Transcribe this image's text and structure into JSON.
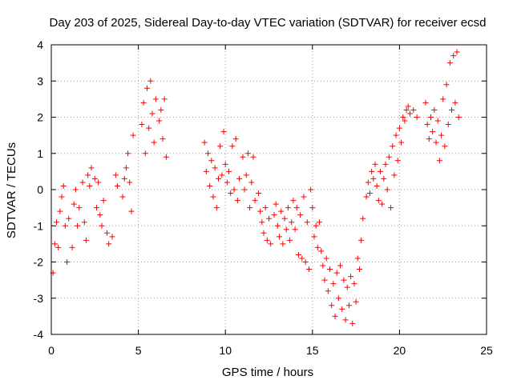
{
  "chart_data": {
    "type": "scatter",
    "title": "Day 203 of 2025, Sidereal Day-to-day VTEC variation (SDTVAR) for receiver ecsd",
    "xlabel": "GPS time / hours",
    "ylabel": "SDTVAR / TECUs",
    "xlim": [
      0,
      25
    ],
    "ylim": [
      -4,
      4
    ],
    "x_ticks": [
      0,
      5,
      10,
      15,
      20,
      25
    ],
    "y_ticks": [
      -4,
      -3,
      -2,
      -1,
      0,
      1,
      2,
      3,
      4
    ],
    "x_tick_labels": [
      "0",
      "5",
      "10",
      "15",
      "20",
      "25"
    ],
    "y_tick_labels": [
      "-4",
      "-3",
      "-2",
      "-1",
      "0",
      "1",
      "2",
      "3",
      "4"
    ],
    "grid": true,
    "marker": "plus",
    "color": "#ff0000",
    "series": [
      {
        "name": "ecsd",
        "points": [
          [
            0.1,
            -2.3
          ],
          [
            0.2,
            -1.5
          ],
          [
            0.3,
            -0.9
          ],
          [
            0.4,
            -1.6
          ],
          [
            0.5,
            -0.6
          ],
          [
            0.6,
            -0.2
          ],
          [
            0.7,
            0.1
          ],
          [
            0.8,
            -1.0
          ],
          [
            0.9,
            -2.0
          ],
          [
            1.0,
            -0.8
          ],
          [
            1.2,
            -1.6
          ],
          [
            1.3,
            -0.4
          ],
          [
            1.4,
            0.0
          ],
          [
            1.5,
            -1.0
          ],
          [
            1.6,
            -0.5
          ],
          [
            1.8,
            0.2
          ],
          [
            1.9,
            -0.9
          ],
          [
            2.0,
            -1.4
          ],
          [
            2.1,
            0.4
          ],
          [
            2.2,
            0.1
          ],
          [
            2.3,
            0.6
          ],
          [
            2.5,
            0.3
          ],
          [
            2.6,
            -0.5
          ],
          [
            2.7,
            0.2
          ],
          [
            2.8,
            -0.7
          ],
          [
            2.9,
            -1.0
          ],
          [
            3.0,
            -0.3
          ],
          [
            3.2,
            -1.2
          ],
          [
            3.3,
            -1.5
          ],
          [
            3.5,
            -1.3
          ],
          [
            3.7,
            0.4
          ],
          [
            3.8,
            0.1
          ],
          [
            4.1,
            -0.2
          ],
          [
            4.2,
            0.3
          ],
          [
            4.3,
            0.6
          ],
          [
            4.4,
            1.0
          ],
          [
            4.5,
            0.2
          ],
          [
            4.6,
            -0.6
          ],
          [
            4.7,
            1.5
          ],
          [
            5.2,
            1.8
          ],
          [
            5.3,
            2.4
          ],
          [
            5.4,
            1.0
          ],
          [
            5.5,
            2.8
          ],
          [
            5.6,
            1.7
          ],
          [
            5.7,
            3.0
          ],
          [
            5.8,
            2.1
          ],
          [
            5.9,
            1.3
          ],
          [
            6.0,
            2.5
          ],
          [
            6.2,
            1.9
          ],
          [
            6.3,
            2.2
          ],
          [
            6.4,
            1.4
          ],
          [
            6.5,
            2.5
          ],
          [
            6.6,
            0.9
          ],
          [
            8.8,
            1.3
          ],
          [
            8.9,
            0.5
          ],
          [
            9.0,
            1.0
          ],
          [
            9.1,
            0.1
          ],
          [
            9.2,
            0.8
          ],
          [
            9.3,
            -0.2
          ],
          [
            9.4,
            0.6
          ],
          [
            9.5,
            -0.5
          ],
          [
            9.6,
            0.3
          ],
          [
            9.7,
            1.2
          ],
          [
            9.8,
            0.4
          ],
          [
            9.9,
            1.6
          ],
          [
            10.0,
            0.7
          ],
          [
            10.1,
            0.2
          ],
          [
            10.2,
            0.5
          ],
          [
            10.3,
            -0.1
          ],
          [
            10.4,
            1.2
          ],
          [
            10.5,
            0.0
          ],
          [
            10.6,
            1.4
          ],
          [
            10.7,
            -0.3
          ],
          [
            10.8,
            0.3
          ],
          [
            11.0,
            0.9
          ],
          [
            11.1,
            0.0
          ],
          [
            11.2,
            0.4
          ],
          [
            11.3,
            1.0
          ],
          [
            11.4,
            -0.5
          ],
          [
            11.5,
            0.2
          ],
          [
            11.6,
            0.9
          ],
          [
            11.7,
            -0.3
          ],
          [
            11.9,
            -0.1
          ],
          [
            12.0,
            -0.6
          ],
          [
            12.1,
            -0.9
          ],
          [
            12.2,
            -1.2
          ],
          [
            12.3,
            -0.5
          ],
          [
            12.4,
            -1.4
          ],
          [
            12.5,
            -0.8
          ],
          [
            12.6,
            -1.5
          ],
          [
            12.8,
            -0.7
          ],
          [
            12.9,
            -0.4
          ],
          [
            13.0,
            -1.0
          ],
          [
            13.1,
            -1.3
          ],
          [
            13.2,
            -0.6
          ],
          [
            13.3,
            -1.5
          ],
          [
            13.4,
            -0.8
          ],
          [
            13.5,
            -1.1
          ],
          [
            13.6,
            -0.5
          ],
          [
            13.7,
            -1.4
          ],
          [
            13.8,
            -0.9
          ],
          [
            13.9,
            -0.3
          ],
          [
            14.0,
            -1.1
          ],
          [
            14.1,
            -0.5
          ],
          [
            14.2,
            -1.8
          ],
          [
            14.3,
            -0.7
          ],
          [
            14.4,
            -1.9
          ],
          [
            14.5,
            -0.2
          ],
          [
            14.6,
            -2.0
          ],
          [
            14.7,
            -0.9
          ],
          [
            14.8,
            -2.2
          ],
          [
            14.9,
            0.0
          ],
          [
            15.0,
            -0.5
          ],
          [
            15.1,
            -1.3
          ],
          [
            15.2,
            -1.0
          ],
          [
            15.3,
            -1.6
          ],
          [
            15.4,
            -0.9
          ],
          [
            15.5,
            -1.7
          ],
          [
            15.6,
            -2.1
          ],
          [
            15.7,
            -2.5
          ],
          [
            15.8,
            -1.9
          ],
          [
            15.9,
            -2.8
          ],
          [
            16.0,
            -2.2
          ],
          [
            16.1,
            -3.2
          ],
          [
            16.2,
            -2.6
          ],
          [
            16.3,
            -3.5
          ],
          [
            16.4,
            -2.3
          ],
          [
            16.5,
            -3.0
          ],
          [
            16.6,
            -2.1
          ],
          [
            16.7,
            -3.3
          ],
          [
            16.8,
            -2.5
          ],
          [
            16.9,
            -3.6
          ],
          [
            17.0,
            -2.7
          ],
          [
            17.1,
            -3.2
          ],
          [
            17.2,
            -2.4
          ],
          [
            17.3,
            -3.7
          ],
          [
            17.4,
            -2.6
          ],
          [
            17.5,
            -3.1
          ],
          [
            17.6,
            -1.9
          ],
          [
            17.7,
            -2.2
          ],
          [
            17.8,
            -1.4
          ],
          [
            17.9,
            -0.8
          ],
          [
            18.1,
            -0.2
          ],
          [
            18.2,
            0.2
          ],
          [
            18.3,
            -0.1
          ],
          [
            18.4,
            0.5
          ],
          [
            18.5,
            0.3
          ],
          [
            18.6,
            0.7
          ],
          [
            18.7,
            0.1
          ],
          [
            18.8,
            -0.3
          ],
          [
            18.9,
            0.5
          ],
          [
            19.0,
            -0.4
          ],
          [
            19.1,
            0.3
          ],
          [
            19.2,
            0.7
          ],
          [
            19.3,
            0.0
          ],
          [
            19.4,
            0.9
          ],
          [
            19.5,
            -0.5
          ],
          [
            19.6,
            1.2
          ],
          [
            19.7,
            0.4
          ],
          [
            19.8,
            1.5
          ],
          [
            19.9,
            0.8
          ],
          [
            20.0,
            1.7
          ],
          [
            20.1,
            1.3
          ],
          [
            20.2,
            2.0
          ],
          [
            20.3,
            1.9
          ],
          [
            20.4,
            2.2
          ],
          [
            20.5,
            2.3
          ],
          [
            20.6,
            2.1
          ],
          [
            20.8,
            2.2
          ],
          [
            21.0,
            2.0
          ],
          [
            21.5,
            2.4
          ],
          [
            21.6,
            1.8
          ],
          [
            21.7,
            1.4
          ],
          [
            21.8,
            2.0
          ],
          [
            21.9,
            1.6
          ],
          [
            22.0,
            2.2
          ],
          [
            22.1,
            1.3
          ],
          [
            22.2,
            1.9
          ],
          [
            22.3,
            0.8
          ],
          [
            22.4,
            1.5
          ],
          [
            22.5,
            2.5
          ],
          [
            22.6,
            1.2
          ],
          [
            22.7,
            2.9
          ],
          [
            22.8,
            1.8
          ],
          [
            22.9,
            3.5
          ],
          [
            23.0,
            2.2
          ],
          [
            23.1,
            3.7
          ],
          [
            23.2,
            2.4
          ],
          [
            23.3,
            3.8
          ],
          [
            23.4,
            2.0
          ]
        ]
      }
    ]
  }
}
